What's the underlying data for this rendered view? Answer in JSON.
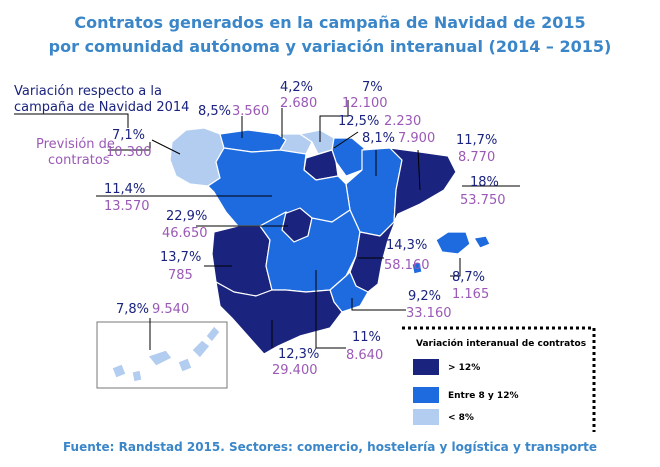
{
  "title_line1": "Contratos generados en la campaña de Navidad de 2015",
  "title_line2": "por comunidad autónoma y variación interanual (2014 – 2015)",
  "key_variation": "Variación respecto a la campaña de Navidad 2014",
  "key_variation_l1": "Variación respecto a la",
  "key_variation_l2": "campaña de Navidad 2014",
  "key_forecast_l1": "Previsión de",
  "key_forecast_l2": "contratos",
  "colors": {
    "high": "#1a237e",
    "mid": "#1e6be0",
    "low": "#b3cdf0",
    "label_var": "#1a237e",
    "label_cnt": "#9b59b6",
    "title": "#3a86c8"
  },
  "regions": [
    {
      "id": "galicia",
      "variation": "7,1%",
      "contracts": "10.300",
      "category": "low"
    },
    {
      "id": "asturias",
      "variation": "8,5%",
      "contracts": "3.560",
      "category": "mid"
    },
    {
      "id": "cantabria",
      "variation": "4,2%",
      "contracts": "2.680",
      "category": "low"
    },
    {
      "id": "pais-vasco",
      "variation": "7%",
      "contracts": "12.100",
      "category": "low"
    },
    {
      "id": "la-rioja",
      "variation": "12,5%",
      "contracts": "2.230",
      "category": "high"
    },
    {
      "id": "navarra",
      "variation": "8,1%",
      "contracts": "7.900",
      "category": "mid"
    },
    {
      "id": "aragon",
      "variation": "11,7%",
      "contracts": "8.770",
      "category": "mid"
    },
    {
      "id": "cataluna",
      "variation": "18%",
      "contracts": "53.750",
      "category": "high"
    },
    {
      "id": "castilla-leon",
      "variation": "11,4%",
      "contracts": "13.570",
      "category": "mid"
    },
    {
      "id": "madrid",
      "variation": "22,9%",
      "contracts": "46.650",
      "category": "high"
    },
    {
      "id": "extremadura",
      "variation": "13,7%",
      "contracts": "785",
      "category": "high"
    },
    {
      "id": "valencia",
      "variation": "14,3%",
      "contracts": "58.160",
      "category": "high"
    },
    {
      "id": "baleares",
      "variation": "8,7%",
      "contracts": "1.165",
      "category": "mid"
    },
    {
      "id": "murcia",
      "variation": "9,2%",
      "contracts": "33.160",
      "category": "mid"
    },
    {
      "id": "canarias",
      "variation": "7,8%",
      "contracts": "9.540",
      "category": "low"
    },
    {
      "id": "andalucia",
      "variation": "12,3%",
      "contracts": "29.400",
      "category": "high"
    },
    {
      "id": "castilla-la-mancha",
      "variation": "11%",
      "contracts": "8.640",
      "category": "mid"
    }
  ],
  "legend": {
    "title": "Variación interanual de contratos",
    "items": [
      {
        "label": "> 12%",
        "category": "high"
      },
      {
        "label": "Entre 8 y 12%",
        "category": "mid"
      },
      {
        "label": "< 8%",
        "category": "low"
      }
    ]
  },
  "source": "Fuente: Randstad 2015. Sectores: comercio, hostelería y logística y transporte"
}
